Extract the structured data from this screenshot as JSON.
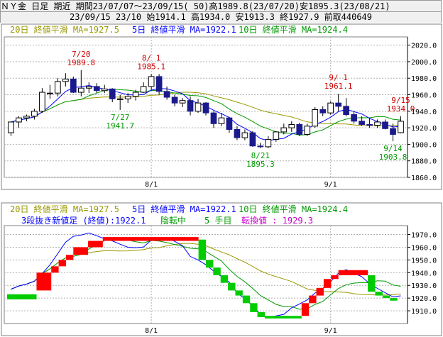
{
  "header": {
    "line1": "ＮＹ金 日足 期近 期間23/07/07～23/09/15( 50)高1989.8(23/07/20)安1895.3(23/08/21)",
    "line2": "23/09/15 23/10 始1914.1 高1934.0 安1913.3 終1927.9 前取440649"
  },
  "colors": {
    "up_candle": "#ffffff",
    "down_candle": "#1a1a8c",
    "ma5": "#0000ff",
    "ma10": "#009900",
    "ma20": "#999900",
    "annot_high": "#cc0000",
    "annot_low": "#009900",
    "brick_up": "#ff0000",
    "brick_down": "#00cc00",
    "turn_value": "#cc00cc",
    "grid": "#b0b0b0"
  },
  "legend_top": {
    "ma20": "20日 終値平滑 MA=1927.5",
    "ma5": "5日 終値平滑 MA=1922.1",
    "ma10": "10日 終値平滑 MA=1924.4"
  },
  "legend_bottom": {
    "ma20": "20日 終値平滑 MA=1927.5",
    "ma5": "5日 終値平滑 MA=1922.1",
    "ma10": "10日 終値平滑 MA=1924.4",
    "kagi_prefix": "3段抜き新値足 (終値):1922.1",
    "kagi_state": "陰転中",
    "kagi_count": "5 手目",
    "kagi_turn": "転換値 : 1929.3"
  },
  "chart_data": [
    {
      "type": "candlestick",
      "title": "ＮＹ金 日足 期近",
      "ylim": [
        1860,
        2030
      ],
      "yticks": [
        1860,
        1880,
        1900,
        1920,
        1940,
        1960,
        1980,
        2000,
        2020
      ],
      "xtick_labels": [
        {
          "index": 18,
          "label": "8/1"
        },
        {
          "index": 41,
          "label": "9/1"
        }
      ],
      "candles": [
        {
          "o": 1914,
          "h": 1926,
          "l": 1910,
          "c": 1927
        },
        {
          "o": 1927,
          "h": 1934,
          "l": 1920,
          "c": 1932
        },
        {
          "o": 1932,
          "h": 1936,
          "l": 1928,
          "c": 1934
        },
        {
          "o": 1934,
          "h": 1943,
          "l": 1930,
          "c": 1940
        },
        {
          "o": 1940,
          "h": 1968,
          "l": 1938,
          "c": 1963
        },
        {
          "o": 1962,
          "h": 1972,
          "l": 1955,
          "c": 1962
        },
        {
          "o": 1962,
          "h": 1980,
          "l": 1958,
          "c": 1976
        },
        {
          "o": 1976,
          "h": 1986,
          "l": 1970,
          "c": 1979
        },
        {
          "o": 1979,
          "h": 1982,
          "l": 1962,
          "c": 1963
        },
        {
          "o": 1963,
          "h": 1989.8,
          "l": 1958,
          "c": 1968
        },
        {
          "o": 1968,
          "h": 1975,
          "l": 1962,
          "c": 1970
        },
        {
          "o": 1970,
          "h": 1974,
          "l": 1962,
          "c": 1965
        },
        {
          "o": 1965,
          "h": 1972,
          "l": 1962,
          "c": 1967
        },
        {
          "o": 1967,
          "h": 1968,
          "l": 1951,
          "c": 1955
        },
        {
          "o": 1955,
          "h": 1960,
          "l": 1941.7,
          "c": 1955
        },
        {
          "o": 1955,
          "h": 1962,
          "l": 1950,
          "c": 1958
        },
        {
          "o": 1958,
          "h": 1966,
          "l": 1953,
          "c": 1963
        },
        {
          "o": 1963,
          "h": 1975,
          "l": 1962,
          "c": 1970
        },
        {
          "o": 1970,
          "h": 1985.1,
          "l": 1966,
          "c": 1982
        },
        {
          "o": 1982,
          "h": 1985,
          "l": 1960,
          "c": 1964
        },
        {
          "o": 1964,
          "h": 1970,
          "l": 1954,
          "c": 1957
        },
        {
          "o": 1957,
          "h": 1960,
          "l": 1946,
          "c": 1950
        },
        {
          "o": 1950,
          "h": 1956,
          "l": 1945,
          "c": 1953
        },
        {
          "o": 1953,
          "h": 1958,
          "l": 1935,
          "c": 1940
        },
        {
          "o": 1940,
          "h": 1955,
          "l": 1938,
          "c": 1950
        },
        {
          "o": 1950,
          "h": 1951,
          "l": 1935,
          "c": 1938
        },
        {
          "o": 1938,
          "h": 1940,
          "l": 1920,
          "c": 1925
        },
        {
          "o": 1925,
          "h": 1938,
          "l": 1922,
          "c": 1932
        },
        {
          "o": 1932,
          "h": 1933,
          "l": 1914,
          "c": 1918
        },
        {
          "o": 1918,
          "h": 1922,
          "l": 1905,
          "c": 1908
        },
        {
          "o": 1908,
          "h": 1918,
          "l": 1905,
          "c": 1914
        },
        {
          "o": 1914,
          "h": 1916,
          "l": 1897,
          "c": 1898
        },
        {
          "o": 1898,
          "h": 1902,
          "l": 1895.3,
          "c": 1897
        },
        {
          "o": 1897,
          "h": 1910,
          "l": 1895.3,
          "c": 1906
        },
        {
          "o": 1906,
          "h": 1916,
          "l": 1903,
          "c": 1915
        },
        {
          "o": 1915,
          "h": 1925,
          "l": 1912,
          "c": 1920
        },
        {
          "o": 1920,
          "h": 1928,
          "l": 1915,
          "c": 1924
        },
        {
          "o": 1924,
          "h": 1926,
          "l": 1910,
          "c": 1912
        },
        {
          "o": 1912,
          "h": 1925,
          "l": 1910,
          "c": 1922
        },
        {
          "o": 1922,
          "h": 1945,
          "l": 1920,
          "c": 1942
        },
        {
          "o": 1942,
          "h": 1946,
          "l": 1934,
          "c": 1938
        },
        {
          "o": 1938,
          "h": 1952,
          "l": 1936,
          "c": 1950
        },
        {
          "o": 1950,
          "h": 1961.1,
          "l": 1940,
          "c": 1946
        },
        {
          "o": 1946,
          "h": 1956,
          "l": 1934,
          "c": 1936
        },
        {
          "o": 1936,
          "h": 1940,
          "l": 1925,
          "c": 1928
        },
        {
          "o": 1928,
          "h": 1934,
          "l": 1922,
          "c": 1924
        },
        {
          "o": 1924,
          "h": 1932,
          "l": 1920,
          "c": 1923
        },
        {
          "o": 1923,
          "h": 1930,
          "l": 1920,
          "c": 1927
        },
        {
          "o": 1927,
          "h": 1930,
          "l": 1918,
          "c": 1919
        },
        {
          "o": 1919,
          "h": 1925,
          "l": 1903.8,
          "c": 1912
        },
        {
          "o": 1914.1,
          "h": 1934.0,
          "l": 1913.3,
          "c": 1927.9
        }
      ],
      "annotations": [
        {
          "index": 9,
          "date": "7/20",
          "value": "1989.8",
          "kind": "high"
        },
        {
          "index": 18,
          "date": "8/ 1",
          "value": "1985.1",
          "kind": "high"
        },
        {
          "index": 14,
          "date": "7/27",
          "value": "1941.7",
          "kind": "low"
        },
        {
          "index": 32,
          "date": "8/21",
          "value": "1895.3",
          "kind": "low"
        },
        {
          "index": 42,
          "date": "9/ 1",
          "value": "1961.1",
          "kind": "high"
        },
        {
          "index": 50,
          "date": "9/15",
          "value": "1934.0",
          "kind": "high"
        },
        {
          "index": 49,
          "date": "9/14",
          "value": "1903.8",
          "kind": "low"
        }
      ]
    },
    {
      "type": "new-price-bricks",
      "title": "3段抜き新値足 (終値)",
      "ylim": [
        1900,
        1977
      ],
      "yticks": [
        1910,
        1920,
        1930,
        1940,
        1950,
        1960,
        1970
      ],
      "xtick_labels": [
        {
          "index": 18,
          "label": "8/1"
        },
        {
          "index": 41,
          "label": "9/1"
        }
      ],
      "bricks": [
        {
          "from": 0,
          "to": 4,
          "low": 1919,
          "high": 1923,
          "dir": "down"
        },
        {
          "from": 4,
          "to": 6,
          "low": 1926,
          "high": 1940,
          "dir": "up"
        },
        {
          "from": 6,
          "to": 7,
          "low": 1940,
          "high": 1945,
          "dir": "up"
        },
        {
          "from": 7,
          "to": 8,
          "low": 1945,
          "high": 1950,
          "dir": "up"
        },
        {
          "from": 8,
          "to": 9,
          "low": 1950,
          "high": 1954,
          "dir": "up"
        },
        {
          "from": 9,
          "to": 11,
          "low": 1954,
          "high": 1960,
          "dir": "up"
        },
        {
          "from": 11,
          "to": 13,
          "low": 1960,
          "high": 1965,
          "dir": "up"
        },
        {
          "from": 13,
          "to": 26,
          "low": 1965,
          "high": 1968,
          "dir": "up"
        },
        {
          "from": 26,
          "to": 27,
          "low": 1950,
          "high": 1966,
          "dir": "down"
        },
        {
          "from": 27,
          "to": 28,
          "low": 1944,
          "high": 1950,
          "dir": "down"
        },
        {
          "from": 28,
          "to": 29,
          "low": 1938,
          "high": 1944,
          "dir": "down"
        },
        {
          "from": 29,
          "to": 30,
          "low": 1932,
          "high": 1938,
          "dir": "down"
        },
        {
          "from": 30,
          "to": 31,
          "low": 1926,
          "high": 1932,
          "dir": "down"
        },
        {
          "from": 31,
          "to": 32,
          "low": 1922,
          "high": 1926,
          "dir": "down"
        },
        {
          "from": 32,
          "to": 33,
          "low": 1916,
          "high": 1922,
          "dir": "down"
        },
        {
          "from": 33,
          "to": 34,
          "low": 1909,
          "high": 1916,
          "dir": "down"
        },
        {
          "from": 34,
          "to": 35,
          "low": 1905,
          "high": 1909,
          "dir": "down"
        },
        {
          "from": 35,
          "to": 40,
          "low": 1904,
          "high": 1906,
          "dir": "down"
        },
        {
          "from": 40,
          "to": 41,
          "low": 1906,
          "high": 1916,
          "dir": "up"
        },
        {
          "from": 41,
          "to": 42,
          "low": 1916,
          "high": 1922,
          "dir": "up"
        },
        {
          "from": 42,
          "to": 43,
          "low": 1922,
          "high": 1928,
          "dir": "up"
        },
        {
          "from": 43,
          "to": 44,
          "low": 1928,
          "high": 1935,
          "dir": "up"
        },
        {
          "from": 44,
          "to": 45,
          "low": 1935,
          "high": 1938,
          "dir": "up"
        },
        {
          "from": 45,
          "to": 49,
          "low": 1938,
          "high": 1942,
          "dir": "up"
        },
        {
          "from": 49,
          "to": 50,
          "low": 1925,
          "high": 1938,
          "dir": "down"
        },
        {
          "from": 50,
          "to": 51,
          "low": 1922,
          "high": 1925,
          "dir": "down"
        },
        {
          "from": 51,
          "to": 52,
          "low": 1920,
          "high": 1922,
          "dir": "down"
        },
        {
          "from": 52,
          "to": 53,
          "low": 1918,
          "high": 1920,
          "dir": "down"
        }
      ]
    }
  ]
}
